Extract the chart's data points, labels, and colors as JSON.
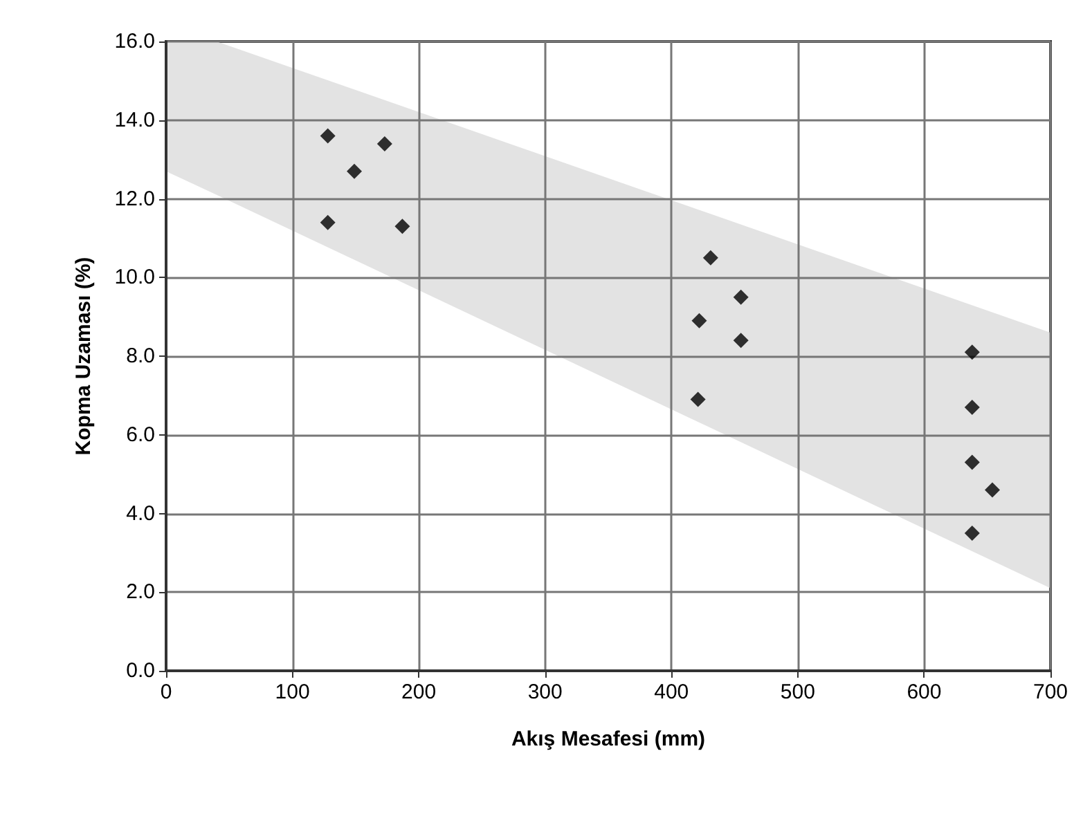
{
  "chart_data": {
    "type": "scatter",
    "xlabel": "Akış Mesafesi (mm)",
    "ylabel": "Kopma Uzaması (%)",
    "xlim": [
      0,
      700
    ],
    "xticks": [
      0,
      100,
      200,
      300,
      400,
      500,
      600,
      700
    ],
    "ylim": [
      0,
      16
    ],
    "yticks": [
      {
        "value": 0,
        "label": "0.0"
      },
      {
        "value": 2,
        "label": "2.0"
      },
      {
        "value": 4,
        "label": "4.0"
      },
      {
        "value": 6,
        "label": "6.0"
      },
      {
        "value": 8,
        "label": "8.0"
      },
      {
        "value": 10,
        "label": "10.0"
      },
      {
        "value": 12,
        "label": "12.0"
      },
      {
        "value": 14,
        "label": "14.0"
      },
      {
        "value": 16,
        "label": "16.0"
      }
    ],
    "grid": true,
    "series": [
      {
        "type": "area",
        "color": "#e3e3e3",
        "x": [
          0,
          40,
          700
        ],
        "values": [
          null,
          null,
          null
        ],
        "upper": [
          16.0,
          16.0,
          8.6
        ],
        "lower": [
          12.7,
          12.1,
          2.1
        ]
      },
      {
        "type": "scatter",
        "marker": "diamond",
        "color": "#000000",
        "x": [
          128,
          128,
          149,
          173,
          187,
          431,
          422,
          455,
          455,
          421,
          638,
          638,
          638,
          654,
          638
        ],
        "values": [
          13.6,
          11.4,
          12.7,
          13.4,
          11.3,
          10.5,
          8.9,
          9.5,
          8.4,
          6.9,
          8.1,
          6.7,
          5.3,
          4.6,
          3.5
        ]
      }
    ]
  }
}
